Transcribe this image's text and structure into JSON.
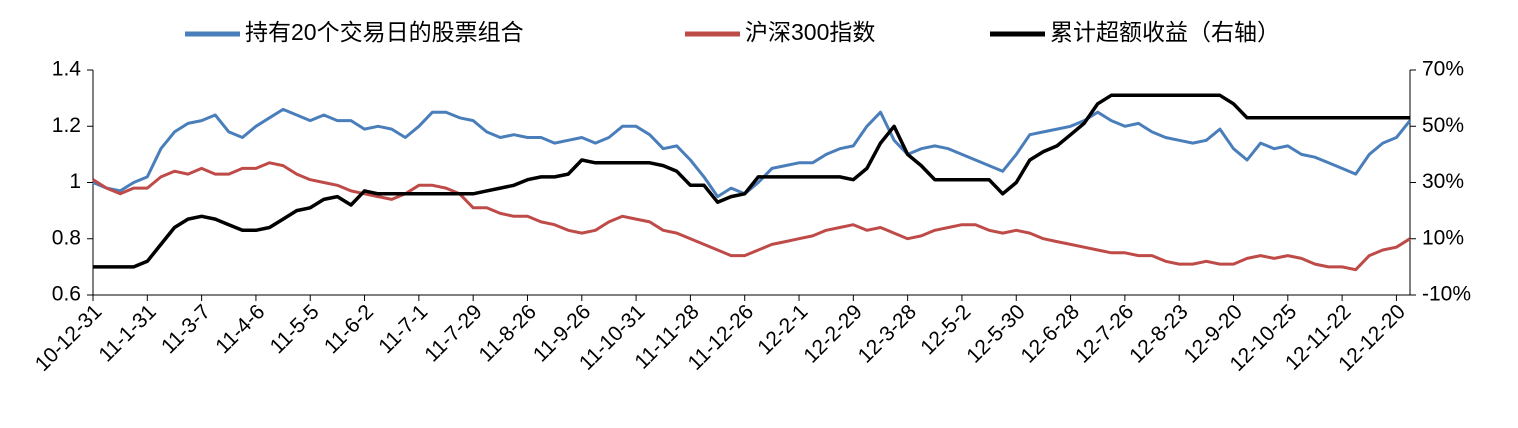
{
  "chart_data": {
    "type": "line",
    "categories": [
      "10-12-31",
      null,
      null,
      null,
      "11-1-31",
      null,
      null,
      null,
      "11-3-7",
      null,
      null,
      null,
      "11-4-6",
      null,
      null,
      null,
      "11-5-5",
      null,
      null,
      null,
      "11-6-2",
      null,
      null,
      null,
      "11-7-1",
      null,
      null,
      null,
      "11-7-29",
      null,
      null,
      null,
      "11-8-26",
      null,
      null,
      null,
      "11-9-26",
      null,
      null,
      null,
      "11-10-31",
      null,
      null,
      null,
      "11-11-28",
      null,
      null,
      null,
      "11-12-26",
      null,
      null,
      null,
      "12-2-1",
      null,
      null,
      null,
      "12-2-29",
      null,
      null,
      null,
      "12-3-28",
      null,
      null,
      null,
      "12-5-2",
      null,
      null,
      null,
      "12-5-30",
      null,
      null,
      null,
      "12-6-28",
      null,
      null,
      null,
      "12-7-26",
      null,
      null,
      null,
      "12-8-23",
      null,
      null,
      null,
      "12-9-20",
      null,
      null,
      null,
      "12-10-25",
      null,
      null,
      null,
      "12-11-22",
      null,
      null,
      null,
      "12-12-20",
      null
    ],
    "series": [
      {
        "name": "持有20个交易日的股票组合",
        "color": "#4a7ebb",
        "values": [
          1.0,
          0.98,
          0.97,
          1.0,
          1.02,
          1.12,
          1.18,
          1.21,
          1.22,
          1.24,
          1.18,
          1.16,
          1.2,
          1.23,
          1.26,
          1.24,
          1.22,
          1.24,
          1.22,
          1.22,
          1.19,
          1.2,
          1.19,
          1.16,
          1.2,
          1.25,
          1.25,
          1.23,
          1.22,
          1.18,
          1.16,
          1.17,
          1.16,
          1.16,
          1.14,
          1.15,
          1.16,
          1.14,
          1.16,
          1.2,
          1.2,
          1.17,
          1.12,
          1.13,
          1.08,
          1.02,
          0.95,
          0.98,
          0.96,
          1.0,
          1.05,
          1.06,
          1.07,
          1.07,
          1.1,
          1.12,
          1.13,
          1.2,
          1.25,
          1.15,
          1.1,
          1.12,
          1.13,
          1.12,
          1.1,
          1.08,
          1.06,
          1.04,
          1.1,
          1.17,
          1.18,
          1.19,
          1.2,
          1.22,
          1.25,
          1.22,
          1.2,
          1.21,
          1.18,
          1.16,
          1.15,
          1.14,
          1.15,
          1.19,
          1.12,
          1.08,
          1.14,
          1.12,
          1.13,
          1.1,
          1.09,
          1.07,
          1.05,
          1.03,
          1.1,
          1.14,
          1.16,
          1.22
        ]
      },
      {
        "name": "沪深300指数",
        "color": "#be4b48",
        "values": [
          1.01,
          0.98,
          0.96,
          0.98,
          0.98,
          1.02,
          1.04,
          1.03,
          1.05,
          1.03,
          1.03,
          1.05,
          1.05,
          1.07,
          1.06,
          1.03,
          1.01,
          1.0,
          0.99,
          0.97,
          0.96,
          0.95,
          0.94,
          0.96,
          0.99,
          0.99,
          0.98,
          0.96,
          0.91,
          0.91,
          0.89,
          0.88,
          0.88,
          0.86,
          0.85,
          0.83,
          0.82,
          0.83,
          0.86,
          0.88,
          0.87,
          0.86,
          0.83,
          0.82,
          0.8,
          0.78,
          0.76,
          0.74,
          0.74,
          0.76,
          0.78,
          0.79,
          0.8,
          0.81,
          0.83,
          0.84,
          0.85,
          0.83,
          0.84,
          0.82,
          0.8,
          0.81,
          0.83,
          0.84,
          0.85,
          0.85,
          0.83,
          0.82,
          0.83,
          0.82,
          0.8,
          0.79,
          0.78,
          0.77,
          0.76,
          0.75,
          0.75,
          0.74,
          0.74,
          0.72,
          0.71,
          0.71,
          0.72,
          0.71,
          0.71,
          0.73,
          0.74,
          0.73,
          0.74,
          0.73,
          0.71,
          0.7,
          0.7,
          0.69,
          0.74,
          0.76,
          0.77,
          0.8
        ]
      },
      {
        "name": "累计超额收益（右轴）",
        "color": "#000000",
        "axis": "y2",
        "values": [
          0,
          0,
          0,
          0,
          2,
          8,
          14,
          17,
          18,
          17,
          15,
          13,
          13,
          14,
          17,
          20,
          21,
          24,
          25,
          22,
          27,
          26,
          26,
          26,
          26,
          26,
          26,
          26,
          26,
          27,
          28,
          29,
          31,
          32,
          32,
          33,
          38,
          37,
          37,
          37,
          37,
          37,
          36,
          34,
          29,
          29,
          23,
          25,
          26,
          32,
          32,
          32,
          32,
          32,
          32,
          32,
          31,
          35,
          44,
          50,
          40,
          36,
          31,
          31,
          31,
          31,
          31,
          26,
          30,
          38,
          41,
          43,
          47,
          51,
          58,
          61,
          61,
          61,
          61,
          61,
          61,
          61,
          61,
          61,
          58,
          53,
          53,
          53,
          53,
          53,
          53,
          53,
          53,
          53,
          53,
          53,
          53,
          53
        ]
      }
    ],
    "ylim": [
      0.6,
      1.4
    ],
    "yticks": [
      0.6,
      0.8,
      1,
      1.2,
      1.4
    ],
    "y2lim": [
      -10,
      70
    ],
    "y2ticks": [
      {
        "value": -10,
        "label": "-10%"
      },
      {
        "value": 10,
        "label": "10%"
      },
      {
        "value": 30,
        "label": "30%"
      },
      {
        "value": 50,
        "label": "50%"
      },
      {
        "value": 70,
        "label": "70%"
      }
    ],
    "legend": "top"
  }
}
